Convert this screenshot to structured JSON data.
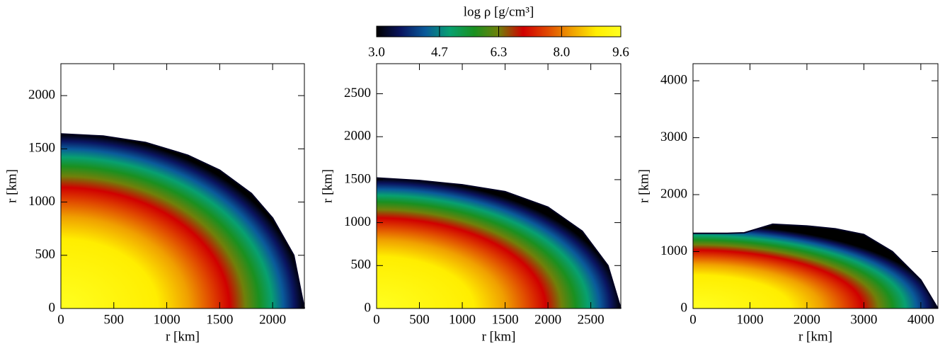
{
  "chart_data": [
    {
      "type": "colorbar",
      "label": "log ρ [g/cm³]",
      "lim": [
        3,
        9.6
      ],
      "ticks": [
        {
          "value": 3,
          "label": "3.0"
        },
        4.7,
        6.3,
        {
          "value": 8,
          "label": "8.0"
        },
        9.6
      ],
      "colors": [
        "#000000",
        "#0a1560",
        "#0a5a9a",
        "#08a070",
        "#1a9020",
        "#70800a",
        "#d00000",
        "#e04800",
        "#f0a000",
        "#ffee00",
        "#ffff20"
      ]
    },
    {
      "type": "density-map",
      "xlabel": "r [km]",
      "ylabel": "r [km]",
      "xlim": [
        0,
        2300
      ],
      "ylim": [
        0,
        2300
      ],
      "xticks": [
        0,
        500,
        1000,
        1500,
        2000
      ],
      "yticks": [
        0,
        500,
        1000,
        1500,
        2000
      ],
      "x": [
        0,
        400,
        800,
        1200,
        1500,
        1800,
        2000,
        2200,
        2300
      ],
      "values": [
        1640,
        1620,
        1560,
        1440,
        1300,
        1080,
        850,
        500,
        0
      ]
    },
    {
      "type": "density-map",
      "xlabel": "r [km]",
      "ylabel": "r [km]",
      "xlim": [
        0,
        2850
      ],
      "ylim": [
        0,
        2850
      ],
      "xticks": [
        0,
        500,
        1000,
        1500,
        2000,
        2500
      ],
      "yticks": [
        0,
        500,
        1000,
        1500,
        2000,
        2500
      ],
      "x": [
        0,
        500,
        1000,
        1500,
        2000,
        2400,
        2700,
        2850
      ],
      "values": [
        1520,
        1490,
        1440,
        1360,
        1180,
        900,
        500,
        0
      ]
    },
    {
      "type": "density-map",
      "xlabel": "r [km]",
      "ylabel": "r [km]",
      "xlim": [
        0,
        4300
      ],
      "ylim": [
        0,
        4300
      ],
      "xticks": [
        0,
        1000,
        2000,
        3000,
        4000
      ],
      "yticks": [
        0,
        1000,
        2000,
        3000,
        4000
      ],
      "x": [
        0,
        600,
        900,
        1400,
        2000,
        2500,
        3000,
        3500,
        4000,
        4300
      ],
      "values": [
        1320,
        1320,
        1330,
        1480,
        1450,
        1400,
        1300,
        1000,
        500,
        0
      ]
    }
  ]
}
